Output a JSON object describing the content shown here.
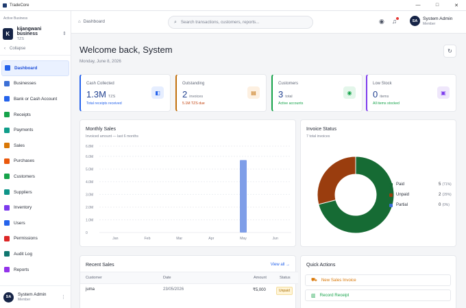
{
  "window": {
    "app_name": "TradeCore",
    "minimize": "—",
    "maximize": "□",
    "close": "✕"
  },
  "sidebar": {
    "active_business_label": "Active Business",
    "business": {
      "initial": "K",
      "name": "kijangwani business",
      "currency": "TZS"
    },
    "collapse_label": "Collapse",
    "items": [
      {
        "label": "Dashboard",
        "icon": "grid-icon",
        "color": "#2563eb"
      },
      {
        "label": "Businesses",
        "icon": "building-icon",
        "color": "#3b6fd6"
      },
      {
        "label": "Bank or Cash Account",
        "icon": "bank-icon",
        "color": "#2563eb"
      },
      {
        "label": "Receipts",
        "icon": "receipt-icon",
        "color": "#16a34a"
      },
      {
        "label": "Payments",
        "icon": "card-icon",
        "color": "#0f9d8a"
      },
      {
        "label": "Sales",
        "icon": "cart-icon",
        "color": "#d97706"
      },
      {
        "label": "Purchases",
        "icon": "bag-icon",
        "color": "#ea580c"
      },
      {
        "label": "Customers",
        "icon": "users-icon",
        "color": "#16a34a"
      },
      {
        "label": "Suppliers",
        "icon": "truck-icon",
        "color": "#0d9488"
      },
      {
        "label": "Inventory",
        "icon": "box-icon",
        "color": "#7c3aed"
      },
      {
        "label": "Users",
        "icon": "user-icon",
        "color": "#2563eb"
      },
      {
        "label": "Permissions",
        "icon": "shield-icon",
        "color": "#dc2626"
      },
      {
        "label": "Audit Log",
        "icon": "history-icon",
        "color": "#0f766e"
      },
      {
        "label": "Reports",
        "icon": "bar-chart-icon",
        "color": "#9333ea"
      }
    ],
    "user": {
      "initials": "SA",
      "name": "System Admin",
      "role": "Member"
    }
  },
  "header": {
    "breadcrumb": "Dashboard",
    "search_placeholder": "Search transactions, customers, reports...",
    "user": {
      "initials": "SA",
      "name": "System Admin",
      "role": "Member"
    }
  },
  "main": {
    "welcome": "Welcome back, System",
    "date": "Monday, June 8, 2026",
    "stats": [
      {
        "label": "Cash Collected",
        "value": "1.3M",
        "unit": "TZS",
        "sub": "Total receipts received",
        "sub_color": "#2563eb",
        "badge_bg": "#e6eeff",
        "badge_fg": "#2563eb",
        "icon": "wallet-icon",
        "glyph": "◧"
      },
      {
        "label": "Outstanding",
        "value": "2",
        "unit": "invoices",
        "sub": "5.1M TZS due",
        "sub_color": "#c2410c",
        "badge_bg": "#fdf0e1",
        "badge_fg": "#c2700c",
        "icon": "document-icon",
        "glyph": "▤"
      },
      {
        "label": "Customers",
        "value": "3",
        "unit": "total",
        "sub": "Active accounts",
        "sub_color": "#16a34a",
        "badge_bg": "#e3f6ea",
        "badge_fg": "#16a34a",
        "icon": "users-icon",
        "glyph": "◉"
      },
      {
        "label": "Low Stock",
        "value": "0",
        "unit": "items",
        "sub": "All items stocked",
        "sub_color": "#16a34a",
        "badge_bg": "#efe7fb",
        "badge_fg": "#7c3aed",
        "icon": "box-icon",
        "glyph": "▣"
      }
    ],
    "monthly_sales": {
      "title": "Monthly Sales",
      "subtitle": "Invoiced amount — last 6 months"
    },
    "invoice_status": {
      "title": "Invoice Status",
      "subtitle": "7 total invoices"
    },
    "recent_sales": {
      "title": "Recent Sales",
      "view_all": "View all →",
      "columns": [
        "Customer",
        "Date",
        "Amount",
        "Status"
      ],
      "rows": [
        {
          "customer": "juma",
          "date": "23/05/2026",
          "amount": "₹5,000",
          "status": "Unpaid"
        }
      ]
    },
    "quick_actions": {
      "title": "Quick Actions",
      "items": [
        {
          "label": "New Sales Invoice",
          "color": "#d97706",
          "icon": "cart-icon",
          "glyph": "⛟"
        },
        {
          "label": "Record Receipt",
          "color": "#16a34a",
          "icon": "receipt-icon",
          "glyph": "▥"
        }
      ]
    }
  },
  "chart_data": [
    {
      "type": "bar",
      "categories": [
        "Jan",
        "Feb",
        "Mar",
        "Apr",
        "May",
        "Jun"
      ],
      "values": [
        0,
        0,
        0,
        0,
        5700000,
        0
      ],
      "y_ticks": [
        "0",
        "1.0M",
        "2.0M",
        "3.0M",
        "4.0M",
        "5.0M",
        "6.0M",
        "6.8M"
      ],
      "ylim": [
        0,
        6800000
      ],
      "bar_color": "#7f9ee8",
      "grid": true
    },
    {
      "type": "pie",
      "donut": true,
      "slices": [
        {
          "label": "Paid",
          "count": "5",
          "pct": "(71%)",
          "value": 71,
          "color": "#166b34"
        },
        {
          "label": "Unpaid",
          "count": "2",
          "pct": "(29%)",
          "value": 29,
          "color": "#9a3d0e"
        },
        {
          "label": "Partial",
          "count": "0",
          "pct": "(0%)",
          "value": 0,
          "color": "#3b6fd6"
        }
      ],
      "legend": "right"
    }
  ]
}
